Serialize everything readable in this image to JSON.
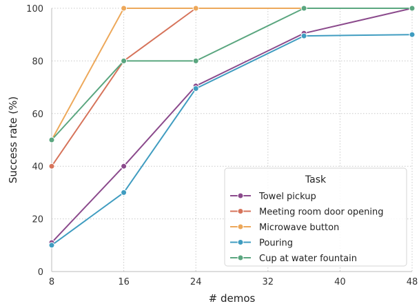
{
  "chart_data": {
    "type": "line",
    "xlabel": "# demos",
    "ylabel": "Success rate (%)",
    "xlim": [
      8,
      48
    ],
    "ylim": [
      0,
      100
    ],
    "xticks": [
      8,
      16,
      24,
      32,
      40,
      48
    ],
    "yticks": [
      0,
      20,
      40,
      60,
      80,
      100
    ],
    "grid": true,
    "legend": {
      "title": "Task",
      "placement": "bottom-right"
    },
    "series": [
      {
        "name": "Towel pickup",
        "color": "#8b4a8c",
        "x": [
          8,
          16,
          24,
          36,
          48
        ],
        "y": [
          11,
          40,
          70.5,
          90.5,
          100
        ]
      },
      {
        "name": "Meeting room door opening",
        "color": "#d6735a",
        "x": [
          8,
          16,
          24,
          36,
          48
        ],
        "y": [
          40,
          80,
          100,
          100,
          100
        ]
      },
      {
        "name": "Microwave button",
        "color": "#eda85a",
        "x": [
          8,
          16,
          24,
          36,
          48
        ],
        "y": [
          50,
          100,
          100,
          100,
          100
        ]
      },
      {
        "name": "Pouring",
        "color": "#3f9cc0",
        "x": [
          8,
          16,
          24,
          36,
          48
        ],
        "y": [
          10,
          30,
          69.5,
          89.5,
          90
        ]
      },
      {
        "name": "Cup at water fountain",
        "color": "#5aa67f",
        "x": [
          8,
          16,
          24,
          36,
          48
        ],
        "y": [
          50,
          80,
          80,
          100,
          100
        ]
      }
    ]
  }
}
